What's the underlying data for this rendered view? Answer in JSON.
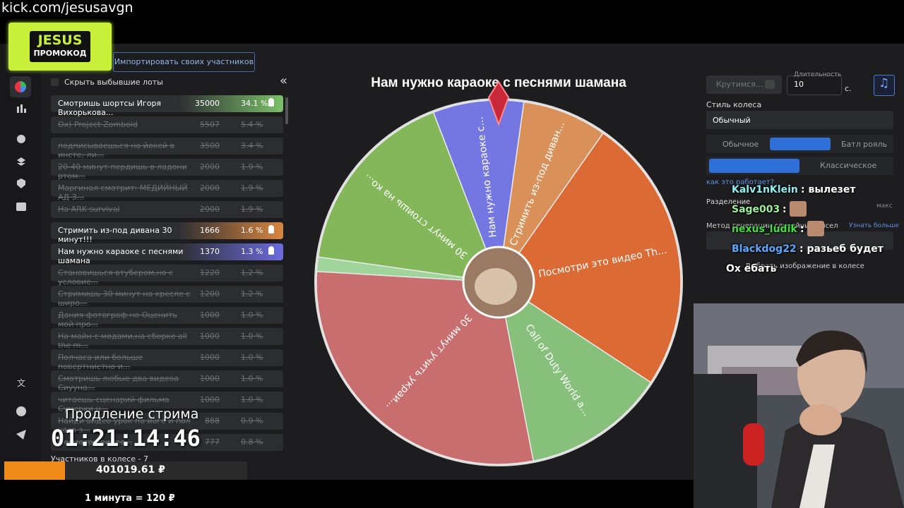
{
  "stream": {
    "url": "kick.com/jesusavgn",
    "promo_title": "JESUS",
    "promo_sub": "ПРОМОКОД",
    "extension_label": "Продление стрима",
    "timer": "01:21:14:46",
    "balance": "401019.61 ₽",
    "rate": "1 минута = 120 ₽"
  },
  "app": {
    "import_button": "Импортировать своих участников",
    "hide_label": "Скрыть выбывшие лоты",
    "collapse": "«",
    "participants_count": "Участников в колесе - 7",
    "lots": [
      {
        "name": "Смотришь шортсы Игоря Вихорькова...",
        "amount": 35000,
        "percent": "34.1 %",
        "state": "active",
        "color": "#7cc06a"
      },
      {
        "name": "Ох) Project Zomboid",
        "amount": 5507,
        "percent": "5.4 %",
        "state": "dropped"
      },
      {
        "name": "подписываешься на йокей в инсте, ли...",
        "amount": 3500,
        "percent": "3.4 %",
        "state": "dropped"
      },
      {
        "name": "20-40 минут пердишь в ладони ртом...",
        "amount": 2000,
        "percent": "1.9 %",
        "state": "dropped"
      },
      {
        "name": "Маргинал смотрит: МЕДИЙНЫЙ АД З...",
        "amount": 2000,
        "percent": "1.9 %",
        "state": "dropped"
      },
      {
        "name": "На ARK survival",
        "amount": 2000,
        "percent": "1.9 %",
        "state": "dropped"
      },
      {
        "name": "Стримить из-под дивана 30 минут!!!",
        "amount": 1666,
        "percent": "1.6 %",
        "state": "active",
        "color": "#d9863f"
      },
      {
        "name": "Нам нужно караоке с песнями шамана",
        "amount": 1370,
        "percent": "1.3 %",
        "state": "active",
        "color": "#6c6be0"
      },
      {
        "name": "Становишься втубером,но с условие...",
        "amount": 1220,
        "percent": "1.2 %",
        "state": "dropped"
      },
      {
        "name": "Стримишь 30 минут на кресле с широ...",
        "amount": 1200,
        "percent": "1.2 %",
        "state": "dropped"
      },
      {
        "name": "Дания фотограф но Оценить мой про...",
        "amount": 1000,
        "percent": "1.0 %",
        "state": "dropped"
      },
      {
        "name": "На майн с модами,на сборке all the m...",
        "amount": 1000,
        "percent": "1.0 %",
        "state": "dropped"
      },
      {
        "name": "Полчаса или больше повертнистно и...",
        "amount": 1000,
        "percent": "1.0 %",
        "state": "dropped"
      },
      {
        "name": "Смотришь любые два видеоа Сиууна...",
        "amount": 1000,
        "percent": "1.0 %",
        "state": "dropped"
      },
      {
        "name": "читаешь сценарий фильма Сумерки н...",
        "amount": 1000,
        "percent": "1.0 %",
        "state": "dropped"
      },
      {
        "name": "Найди видео урок по йоге и пол часа з...",
        "amount": 888,
        "percent": "0.9 %",
        "state": "dropped"
      },
      {
        "name": "Посмотри видео...",
        "amount": 777,
        "percent": "0.8 %",
        "state": "dropped"
      }
    ],
    "wheel": {
      "title": "Нам нужно караоке с песнями шамана",
      "slices": [
        {
          "label": "Нам нужно караоке с...",
          "color": "#7476e2"
        },
        {
          "label": "Стримить из-под диван...",
          "color": "#d99159"
        },
        {
          "label": "Посмотри это видео Th...",
          "color": "#dc6a34"
        },
        {
          "label": "Call of Duty World a...",
          "color": "#86c07a"
        },
        {
          "label": "30 минут учить украи...",
          "color": "#c96e6e"
        },
        {
          "color": "#9fd49a"
        },
        {
          "label": "30 минут стоишь на ко...",
          "color": "#84b65a"
        }
      ]
    },
    "settings": {
      "spin_button": "Крутимся...",
      "duration_label": "Длительность",
      "duration": "10",
      "unit": "с.",
      "style_label": "Стиль колеса",
      "style_value": "Обычный",
      "mode_normal": "Обычное",
      "mode_battle": "Батл рояль",
      "mode_classic": "Классическое",
      "help": "как это работает?",
      "split_label": "Разделение",
      "max": "макс",
      "method_label": "Метод генерации случайных чисел",
      "learn_more": "Узнать больше",
      "image_label": "Выбрать изображение в колесе"
    }
  },
  "chat": [
    {
      "user": "Kalv1nKlein",
      "color": "#8ef0f0",
      "text": ": вылезет"
    },
    {
      "user": "Sage003",
      "color": "#9df09a",
      "text": ":"
    },
    {
      "user": "nexus_ludik",
      "color": "#3fe03f",
      "text": ":"
    },
    {
      "user": "Blackdog22",
      "color": "#5aa8ff",
      "text": ": разьеб будет"
    },
    {
      "user": "Ох ебать",
      "color": "#ffffff"
    }
  ]
}
